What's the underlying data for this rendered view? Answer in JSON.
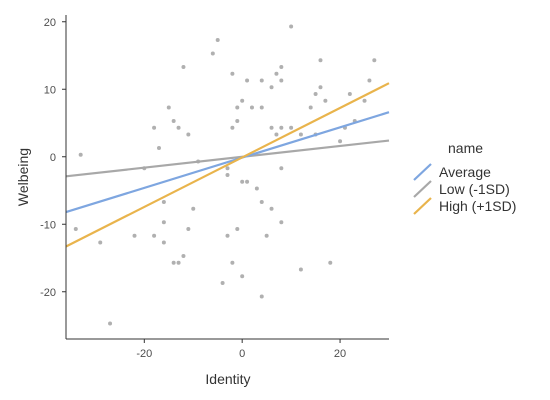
{
  "chart_data": {
    "type": "scatter",
    "title": "",
    "xlabel": "Identity",
    "ylabel": "Welbeing",
    "xlim": [
      -36,
      30
    ],
    "ylim": [
      -27,
      21
    ],
    "xticks": [
      -20,
      0,
      20
    ],
    "xtick_labels": [
      "-20",
      "0",
      "20"
    ],
    "yticks": [
      -20,
      -10,
      0,
      10,
      20
    ],
    "ytick_labels": [
      "-20",
      "-10",
      "0",
      "10",
      "20"
    ],
    "grid": false,
    "legend": {
      "title": "name",
      "placement": "right"
    },
    "points": [
      {
        "x": -33,
        "y": 0.3
      },
      {
        "x": -34,
        "y": -10.7
      },
      {
        "x": -29,
        "y": -12.7
      },
      {
        "x": -27,
        "y": -24.7
      },
      {
        "x": -22,
        "y": -11.7
      },
      {
        "x": -20,
        "y": -1.7
      },
      {
        "x": -18,
        "y": 4.3
      },
      {
        "x": -18,
        "y": -11.7
      },
      {
        "x": -17,
        "y": 1.3
      },
      {
        "x": -16,
        "y": -6.7
      },
      {
        "x": -16,
        "y": -9.7
      },
      {
        "x": -16,
        "y": -12.7
      },
      {
        "x": -15,
        "y": 7.3
      },
      {
        "x": -14,
        "y": 5.3
      },
      {
        "x": -14,
        "y": -15.7
      },
      {
        "x": -13,
        "y": 4.3
      },
      {
        "x": -13,
        "y": -15.7
      },
      {
        "x": -12,
        "y": 13.3
      },
      {
        "x": -12,
        "y": -14.7
      },
      {
        "x": -11,
        "y": 3.3
      },
      {
        "x": -11,
        "y": -10.7
      },
      {
        "x": -10,
        "y": -7.7
      },
      {
        "x": -9,
        "y": -0.7
      },
      {
        "x": -6,
        "y": 15.3
      },
      {
        "x": -5,
        "y": 17.3
      },
      {
        "x": -4,
        "y": -18.7
      },
      {
        "x": -3,
        "y": -1.7
      },
      {
        "x": -3,
        "y": -2.7
      },
      {
        "x": -3,
        "y": -11.7
      },
      {
        "x": -2,
        "y": 12.3
      },
      {
        "x": -2,
        "y": 4.3
      },
      {
        "x": -2,
        "y": -15.7
      },
      {
        "x": -1,
        "y": 7.3
      },
      {
        "x": -1,
        "y": 5.3
      },
      {
        "x": -1,
        "y": -10.7
      },
      {
        "x": 0,
        "y": 8.3
      },
      {
        "x": 0,
        "y": -3.7
      },
      {
        "x": 0,
        "y": -17.7
      },
      {
        "x": 1,
        "y": 11.3
      },
      {
        "x": 1,
        "y": -3.7
      },
      {
        "x": 2,
        "y": 7.3
      },
      {
        "x": 3,
        "y": -4.7
      },
      {
        "x": 4,
        "y": 11.3
      },
      {
        "x": 4,
        "y": 7.3
      },
      {
        "x": 4,
        "y": -6.7
      },
      {
        "x": 4,
        "y": -20.7
      },
      {
        "x": 5,
        "y": -11.7
      },
      {
        "x": 6,
        "y": 10.3
      },
      {
        "x": 6,
        "y": 4.3
      },
      {
        "x": 6,
        "y": -7.7
      },
      {
        "x": 7,
        "y": 12.3
      },
      {
        "x": 7,
        "y": 3.3
      },
      {
        "x": 8,
        "y": 13.3
      },
      {
        "x": 8,
        "y": 11.3
      },
      {
        "x": 8,
        "y": 4.3
      },
      {
        "x": 8,
        "y": -1.7
      },
      {
        "x": 8,
        "y": -9.7
      },
      {
        "x": 10,
        "y": 19.3
      },
      {
        "x": 10,
        "y": 4.3
      },
      {
        "x": 12,
        "y": 3.3
      },
      {
        "x": 12,
        "y": -16.7
      },
      {
        "x": 14,
        "y": 7.3
      },
      {
        "x": 15,
        "y": 9.3
      },
      {
        "x": 15,
        "y": 3.3
      },
      {
        "x": 16,
        "y": 14.3
      },
      {
        "x": 16,
        "y": 10.3
      },
      {
        "x": 17,
        "y": 8.3
      },
      {
        "x": 18,
        "y": -15.7
      },
      {
        "x": 20,
        "y": 2.3
      },
      {
        "x": 21,
        "y": 4.3
      },
      {
        "x": 22,
        "y": 9.3
      },
      {
        "x": 23,
        "y": 5.3
      },
      {
        "x": 25,
        "y": 8.3
      },
      {
        "x": 26,
        "y": 11.3
      },
      {
        "x": 27,
        "y": 14.3
      }
    ],
    "series": [
      {
        "name": "Average",
        "color": "#7ea6e0",
        "x": [
          -36,
          30
        ],
        "y": [
          -8.2,
          6.6
        ]
      },
      {
        "name": "Low (-1SD)",
        "color": "#a8a8a8",
        "x": [
          -36,
          30
        ],
        "y": [
          -2.9,
          2.4
        ]
      },
      {
        "name": "High (+1SD)",
        "color": "#e9b44c",
        "x": [
          -36,
          30
        ],
        "y": [
          -13.3,
          10.9
        ]
      }
    ],
    "point_color": "#b0b0b0"
  }
}
